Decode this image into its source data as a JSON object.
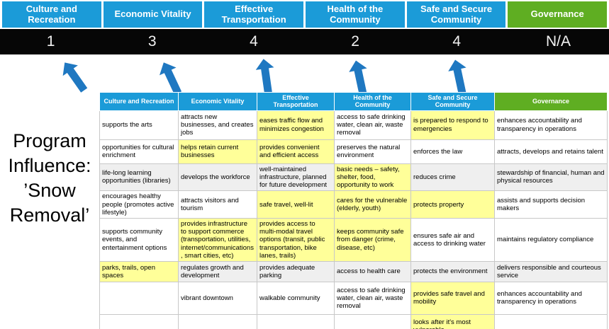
{
  "program_title": "Program Influence: ’Snow Removal’",
  "colors": {
    "header_blue": "#1B9BD8",
    "header_green": "#5FAE22",
    "highlight_yellow": "#FFFF99",
    "score_bar_black": "#060606",
    "arrow_blue": "#1F78C1",
    "row_shade_gray": "#EFEFEF"
  },
  "summary": {
    "items": [
      {
        "label": "Culture and Recreation",
        "score": "1"
      },
      {
        "label": "Economic Vitality",
        "score": "3"
      },
      {
        "label": "Effective Transportation",
        "score": "4"
      },
      {
        "label": "Health of the Community",
        "score": "2"
      },
      {
        "label": "Safe and Secure Community",
        "score": "4"
      },
      {
        "label": "Governance",
        "score": "N/A"
      }
    ]
  },
  "matrix": {
    "headers": [
      {
        "label": "Culture and Recreation",
        "variant": "blue"
      },
      {
        "label": "Economic Vitality",
        "variant": "blue"
      },
      {
        "label": "Effective Transportation",
        "variant": "blue"
      },
      {
        "label": "Health of the Community",
        "variant": "blue"
      },
      {
        "label": "Safe and Secure Community",
        "variant": "blue"
      },
      {
        "label": "Governance",
        "variant": "green"
      }
    ],
    "rows": [
      {
        "shaded": false,
        "cells": [
          {
            "text": "supports the arts",
            "highlight": false
          },
          {
            "text": "attracts new businesses, and creates jobs",
            "highlight": false
          },
          {
            "text": "eases traffic flow and minimizes congestion",
            "highlight": true
          },
          {
            "text": "access to safe drinking water, clean air, waste removal",
            "highlight": false
          },
          {
            "text": "is prepared to respond to emergencies",
            "highlight": true
          },
          {
            "text": "enhances accountability and transparency in operations",
            "highlight": false
          }
        ]
      },
      {
        "shaded": false,
        "cells": [
          {
            "text": "opportunities for cultural enrichment",
            "highlight": false
          },
          {
            "text": "helps retain current businesses",
            "highlight": true
          },
          {
            "text": "provides convenient and efficient access",
            "highlight": true
          },
          {
            "text": "preserves the natural environment",
            "highlight": false
          },
          {
            "text": "enforces the law",
            "highlight": false
          },
          {
            "text": "attracts, develops and retains talent",
            "highlight": false
          }
        ]
      },
      {
        "shaded": true,
        "cells": [
          {
            "text": "life-long learning opportunities (libraries)",
            "highlight": false
          },
          {
            "text": "develops the workforce",
            "highlight": false
          },
          {
            "text": "well-maintained infrastructure, planned for future development",
            "highlight": false
          },
          {
            "text": "basic needs – safety, shelter, food, opportunity to work",
            "highlight": true
          },
          {
            "text": "reduces crime",
            "highlight": false
          },
          {
            "text": "stewardship of financial, human and physical resources",
            "highlight": false
          }
        ]
      },
      {
        "shaded": false,
        "cells": [
          {
            "text": "encourages healthy people (promotes active lifestyle)",
            "highlight": false
          },
          {
            "text": "attracts visitors and tourism",
            "highlight": false
          },
          {
            "text": "safe travel, well-lit",
            "highlight": true
          },
          {
            "text": "cares for the vulnerable (elderly, youth)",
            "highlight": true
          },
          {
            "text": "protects property",
            "highlight": true
          },
          {
            "text": "assists and supports decision makers",
            "highlight": false
          }
        ]
      },
      {
        "shaded": false,
        "cells": [
          {
            "text": "supports community events, and entertainment options",
            "highlight": false
          },
          {
            "text": "provides infrastructure to support commerce (transportation, utilities, internet/communications, smart cities, etc)",
            "highlight": true
          },
          {
            "text": "provides access to multi-modal travel options (transit, public transportation, bike lanes, trails)",
            "highlight": true
          },
          {
            "text": "keeps community safe from danger (crime, disease, etc)",
            "highlight": true
          },
          {
            "text": "ensures safe air and access to drinking water",
            "highlight": false
          },
          {
            "text": "maintains regulatory compliance",
            "highlight": false
          }
        ]
      },
      {
        "shaded": true,
        "cells": [
          {
            "text": "parks, trails, open spaces",
            "highlight": true
          },
          {
            "text": "regulates growth and development",
            "highlight": false
          },
          {
            "text": "provides adequate parking",
            "highlight": false
          },
          {
            "text": "access to health care",
            "highlight": false
          },
          {
            "text": "protects the environment",
            "highlight": false
          },
          {
            "text": "delivers responsible and courteous service",
            "highlight": false
          }
        ]
      },
      {
        "shaded": false,
        "cells": [
          {
            "text": "",
            "highlight": false
          },
          {
            "text": "vibrant downtown",
            "highlight": false
          },
          {
            "text": "walkable community",
            "highlight": false
          },
          {
            "text": "access to safe drinking water, clean air, waste removal",
            "highlight": false
          },
          {
            "text": "provides safe travel and mobility",
            "highlight": true
          },
          {
            "text": "enhances accountability and transparency in operations",
            "highlight": false
          }
        ]
      },
      {
        "shaded": false,
        "cells": [
          {
            "text": "",
            "highlight": false
          },
          {
            "text": "",
            "highlight": false
          },
          {
            "text": "",
            "highlight": false
          },
          {
            "text": "",
            "highlight": false
          },
          {
            "text": "looks after it's most vulnerable",
            "highlight": true
          },
          {
            "text": "",
            "highlight": false
          }
        ]
      }
    ]
  }
}
